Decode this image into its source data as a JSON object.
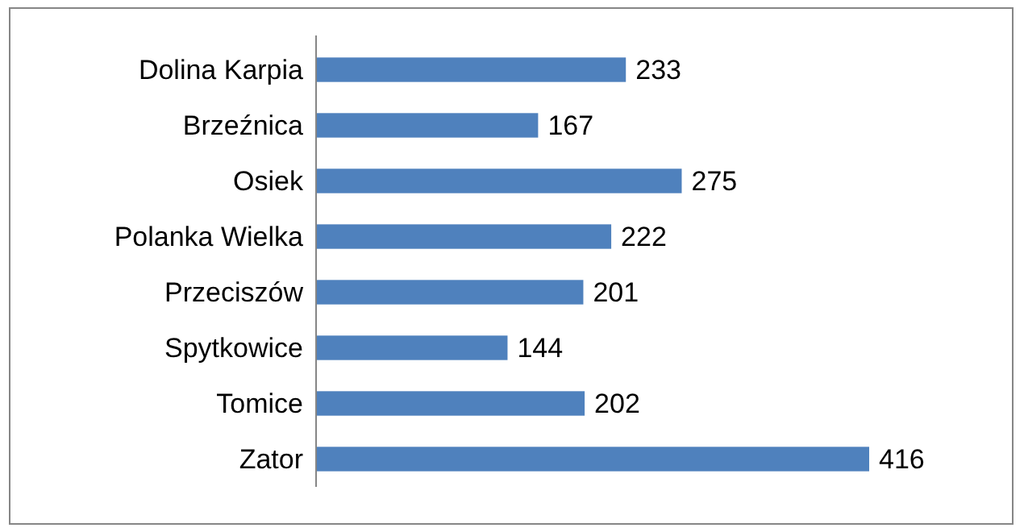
{
  "chart_data": {
    "type": "bar",
    "orientation": "horizontal",
    "categories": [
      "Dolina Karpia",
      "Brzeźnica",
      "Osiek",
      "Polanka Wielka",
      "Przeciszów",
      "Spytkowice",
      "Tomice",
      "Zator"
    ],
    "values": [
      233,
      167,
      275,
      222,
      201,
      144,
      202,
      416
    ],
    "color": "#4f81bd",
    "data_labels": true
  }
}
